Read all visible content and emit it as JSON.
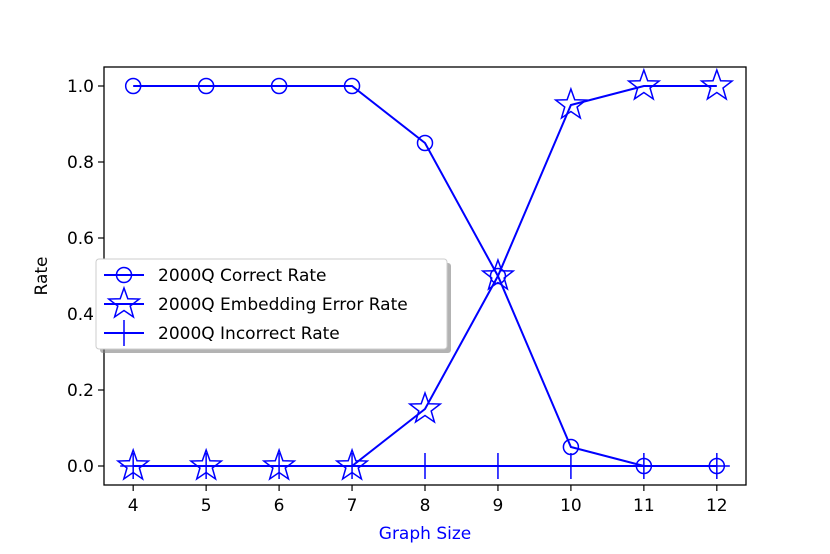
{
  "chart_data": {
    "type": "line",
    "xlabel": "Graph Size",
    "ylabel": "Rate",
    "x": [
      4,
      5,
      6,
      7,
      8,
      9,
      10,
      11,
      12
    ],
    "xlim": [
      3.6,
      12.4
    ],
    "ylim": [
      -0.05,
      1.05
    ],
    "xticks": [
      "4",
      "5",
      "6",
      "7",
      "8",
      "9",
      "10",
      "11",
      "12"
    ],
    "yticks": [
      "0.0",
      "0.2",
      "0.4",
      "0.6",
      "0.8",
      "1.0"
    ],
    "ytick_values": [
      0.0,
      0.2,
      0.4,
      0.6,
      0.8,
      1.0
    ],
    "grid": false,
    "legend_position": "center-left",
    "series": [
      {
        "name": "2000Q Correct Rate",
        "marker": "circle",
        "color": "#0000ff",
        "values": [
          1.0,
          1.0,
          1.0,
          1.0,
          0.85,
          0.5,
          0.05,
          0.0,
          0.0
        ]
      },
      {
        "name": "2000Q Embedding Error Rate",
        "marker": "star",
        "color": "#0000ff",
        "values": [
          0.0,
          0.0,
          0.0,
          0.0,
          0.15,
          0.5,
          0.95,
          1.0,
          1.0
        ]
      },
      {
        "name": "2000Q Incorrect Rate",
        "marker": "plus",
        "color": "#0000ff",
        "values": [
          0.0,
          0.0,
          0.0,
          0.0,
          0.0,
          0.0,
          0.0,
          0.0,
          0.0
        ]
      }
    ],
    "colors": {
      "line": "#0000ff",
      "xlabel": "#0000ff",
      "ylabel": "#000000",
      "axes": "#000000"
    }
  }
}
